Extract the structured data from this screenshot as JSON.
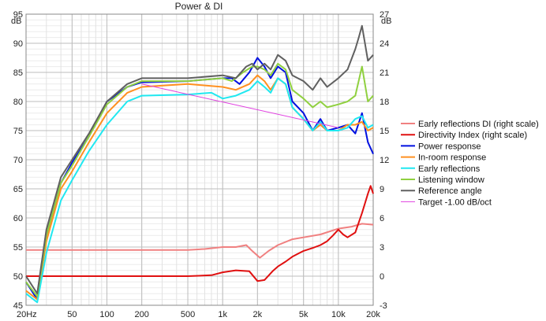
{
  "chart_data": {
    "type": "line",
    "title": "Power & DI",
    "left_axis": {
      "unit": "dB",
      "range": [
        45,
        95
      ],
      "ticks": [
        45,
        50,
        55,
        60,
        65,
        70,
        75,
        80,
        85,
        90,
        95
      ]
    },
    "right_axis": {
      "unit": "dB",
      "range": [
        -3,
        27
      ],
      "ticks": [
        -3,
        0,
        3,
        6,
        9,
        12,
        15,
        18,
        21,
        24,
        27
      ]
    },
    "x_axis": {
      "scale": "log",
      "range": [
        20,
        20000
      ],
      "ticks": [
        20,
        50,
        100,
        200,
        500,
        1000,
        2000,
        5000,
        10000,
        20000
      ],
      "tick_labels": [
        "20Hz",
        "50",
        "100",
        "200",
        "500",
        "1k",
        "2k",
        "5k",
        "10k",
        "20k"
      ]
    },
    "grid": true,
    "legend_position": "right",
    "series": [
      {
        "name": "Early reflections DI (right scale)",
        "axis": "right",
        "color": "#f08080",
        "width": 2,
        "points": [
          [
            20,
            2.7
          ],
          [
            30,
            2.7
          ],
          [
            50,
            2.7
          ],
          [
            100,
            2.7
          ],
          [
            200,
            2.7
          ],
          [
            500,
            2.7
          ],
          [
            700,
            2.8
          ],
          [
            1000,
            3.0
          ],
          [
            1300,
            3.0
          ],
          [
            1600,
            3.2
          ],
          [
            1800,
            2.6
          ],
          [
            2100,
            1.9
          ],
          [
            2500,
            2.6
          ],
          [
            3000,
            3.2
          ],
          [
            4000,
            3.8
          ],
          [
            5000,
            4.0
          ],
          [
            7000,
            4.3
          ],
          [
            10000,
            4.9
          ],
          [
            13000,
            5.1
          ],
          [
            16000,
            5.4
          ],
          [
            20000,
            5.3
          ]
        ]
      },
      {
        "name": "Directivity Index (right scale)",
        "axis": "right",
        "color": "#e01010",
        "width": 2,
        "points": [
          [
            20,
            0
          ],
          [
            30,
            0
          ],
          [
            50,
            0
          ],
          [
            100,
            0
          ],
          [
            200,
            0
          ],
          [
            500,
            0
          ],
          [
            800,
            0.1
          ],
          [
            1000,
            0.4
          ],
          [
            1300,
            0.6
          ],
          [
            1700,
            0.5
          ],
          [
            2000,
            -0.5
          ],
          [
            2300,
            -0.4
          ],
          [
            2700,
            0.5
          ],
          [
            3000,
            1.0
          ],
          [
            3500,
            1.5
          ],
          [
            4000,
            2.0
          ],
          [
            5000,
            2.6
          ],
          [
            6000,
            2.9
          ],
          [
            7000,
            3.2
          ],
          [
            8000,
            3.6
          ],
          [
            9000,
            4.2
          ],
          [
            10000,
            4.8
          ],
          [
            11000,
            4.3
          ],
          [
            12000,
            4.0
          ],
          [
            14000,
            4.5
          ],
          [
            16000,
            6.5
          ],
          [
            18000,
            8.5
          ],
          [
            19000,
            9.3
          ],
          [
            20000,
            8.5
          ]
        ]
      },
      {
        "name": "Power response",
        "axis": "left",
        "color": "#0010e0",
        "width": 2,
        "points": [
          [
            20,
            49
          ],
          [
            25,
            46
          ],
          [
            30,
            57
          ],
          [
            40,
            66
          ],
          [
            50,
            69.5
          ],
          [
            70,
            74
          ],
          [
            100,
            80
          ],
          [
            150,
            82.5
          ],
          [
            200,
            83.3
          ],
          [
            500,
            83.5
          ],
          [
            1000,
            84
          ],
          [
            1200,
            84
          ],
          [
            1400,
            83
          ],
          [
            1700,
            85
          ],
          [
            2000,
            87.5
          ],
          [
            2300,
            86
          ],
          [
            2600,
            84
          ],
          [
            3000,
            86
          ],
          [
            3500,
            85
          ],
          [
            4000,
            80
          ],
          [
            5000,
            78
          ],
          [
            6000,
            75
          ],
          [
            7000,
            77
          ],
          [
            8000,
            75
          ],
          [
            10000,
            75.5
          ],
          [
            12000,
            76
          ],
          [
            14000,
            74.5
          ],
          [
            16000,
            78
          ],
          [
            18000,
            73
          ],
          [
            20000,
            71
          ]
        ]
      },
      {
        "name": "In-room response",
        "axis": "left",
        "color": "#ff9020",
        "width": 2,
        "points": [
          [
            20,
            47.5
          ],
          [
            25,
            46
          ],
          [
            30,
            56
          ],
          [
            40,
            65
          ],
          [
            50,
            68
          ],
          [
            70,
            73
          ],
          [
            100,
            78
          ],
          [
            150,
            81.5
          ],
          [
            200,
            82.5
          ],
          [
            500,
            83
          ],
          [
            1000,
            82.5
          ],
          [
            1300,
            82
          ],
          [
            1700,
            83
          ],
          [
            2000,
            84.5
          ],
          [
            2300,
            83.5
          ],
          [
            2600,
            82
          ],
          [
            3000,
            84
          ],
          [
            3500,
            83
          ],
          [
            4000,
            79
          ],
          [
            5000,
            77
          ],
          [
            6000,
            75
          ],
          [
            7000,
            76
          ],
          [
            8000,
            75
          ],
          [
            10000,
            75
          ],
          [
            12000,
            76
          ],
          [
            14000,
            76
          ],
          [
            16000,
            76.5
          ],
          [
            18000,
            75
          ],
          [
            20000,
            75.5
          ]
        ]
      },
      {
        "name": "Early reflections",
        "axis": "left",
        "color": "#20e8f0",
        "width": 2,
        "points": [
          [
            20,
            47
          ],
          [
            25,
            45.5
          ],
          [
            30,
            54
          ],
          [
            40,
            63
          ],
          [
            50,
            66.5
          ],
          [
            70,
            71.5
          ],
          [
            100,
            76
          ],
          [
            150,
            80
          ],
          [
            200,
            81
          ],
          [
            500,
            81.2
          ],
          [
            800,
            81.5
          ],
          [
            1000,
            80.5
          ],
          [
            1300,
            81
          ],
          [
            1700,
            82
          ],
          [
            2000,
            83.5
          ],
          [
            2300,
            82.5
          ],
          [
            2600,
            81.5
          ],
          [
            3000,
            84
          ],
          [
            3500,
            83
          ],
          [
            4000,
            79
          ],
          [
            5000,
            77
          ],
          [
            6000,
            75
          ],
          [
            7000,
            76.5
          ],
          [
            8000,
            75
          ],
          [
            10000,
            75
          ],
          [
            12000,
            75.5
          ],
          [
            14000,
            77
          ],
          [
            16000,
            77.5
          ],
          [
            18000,
            75.5
          ],
          [
            20000,
            76
          ]
        ]
      },
      {
        "name": "Listening window",
        "axis": "left",
        "color": "#90d040",
        "width": 2,
        "points": [
          [
            20,
            49
          ],
          [
            25,
            46.5
          ],
          [
            30,
            57
          ],
          [
            40,
            66
          ],
          [
            50,
            69
          ],
          [
            70,
            74
          ],
          [
            100,
            79.5
          ],
          [
            150,
            82.5
          ],
          [
            200,
            83.5
          ],
          [
            500,
            83.5
          ],
          [
            1000,
            84
          ],
          [
            1200,
            83.5
          ],
          [
            1500,
            85
          ],
          [
            1800,
            86
          ],
          [
            2000,
            86
          ],
          [
            2300,
            85.5
          ],
          [
            2600,
            84.5
          ],
          [
            3000,
            86.5
          ],
          [
            3500,
            85.5
          ],
          [
            4000,
            82
          ],
          [
            5000,
            80.5
          ],
          [
            6000,
            79
          ],
          [
            7000,
            80
          ],
          [
            8000,
            79
          ],
          [
            10000,
            79.5
          ],
          [
            12000,
            80
          ],
          [
            14000,
            81
          ],
          [
            16000,
            86
          ],
          [
            18000,
            80
          ],
          [
            20000,
            81
          ]
        ]
      },
      {
        "name": "Reference angle",
        "axis": "left",
        "color": "#606060",
        "width": 2,
        "points": [
          [
            20,
            50
          ],
          [
            25,
            47
          ],
          [
            30,
            58
          ],
          [
            40,
            67
          ],
          [
            50,
            70
          ],
          [
            70,
            74.5
          ],
          [
            100,
            80
          ],
          [
            150,
            83
          ],
          [
            200,
            84
          ],
          [
            500,
            84
          ],
          [
            1000,
            84.5
          ],
          [
            1300,
            84
          ],
          [
            1600,
            86
          ],
          [
            1800,
            86.5
          ],
          [
            2000,
            85.5
          ],
          [
            2300,
            86.5
          ],
          [
            2600,
            85.5
          ],
          [
            3000,
            88
          ],
          [
            3500,
            87
          ],
          [
            4000,
            84.5
          ],
          [
            5000,
            83.5
          ],
          [
            6000,
            82
          ],
          [
            7000,
            84
          ],
          [
            8000,
            82.5
          ],
          [
            10000,
            84
          ],
          [
            12000,
            85.5
          ],
          [
            14000,
            89
          ],
          [
            15000,
            91
          ],
          [
            16000,
            93
          ],
          [
            18000,
            87
          ],
          [
            20000,
            88
          ]
        ]
      },
      {
        "name": "Target -1.00 dB/oct",
        "axis": "left",
        "color": "#e040e0",
        "width": 1,
        "points": [
          [
            200,
            83
          ],
          [
            10000,
            75.5
          ]
        ]
      }
    ]
  }
}
